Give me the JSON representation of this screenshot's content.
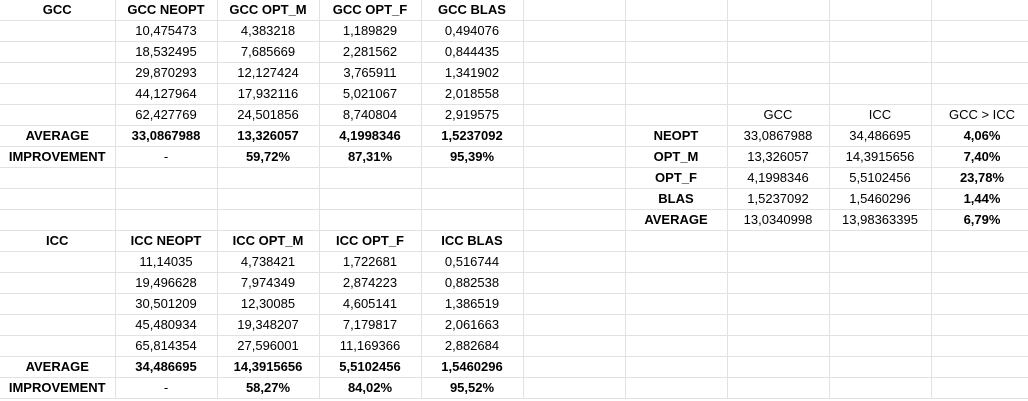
{
  "gcc": {
    "title": "GCC",
    "headers": [
      "GCC NEOPT",
      "GCC OPT_M",
      "GCC OPT_F",
      "GCC BLAS"
    ],
    "rows": [
      [
        "10,475473",
        "4,383218",
        "1,189829",
        "0,494076"
      ],
      [
        "18,532495",
        "7,685669",
        "2,281562",
        "0,844435"
      ],
      [
        "29,870293",
        "12,127424",
        "3,765911",
        "1,341902"
      ],
      [
        "44,127964",
        "17,932116",
        "5,021067",
        "2,018558"
      ],
      [
        "62,427769",
        "24,501856",
        "8,740804",
        "2,919575"
      ]
    ],
    "average_label": "AVERAGE",
    "average": [
      "33,0867988",
      "13,326057",
      "4,1998346",
      "1,5237092"
    ],
    "improvement_label": "IMPROVEMENT",
    "improvement": [
      "-",
      "59,72%",
      "87,31%",
      "95,39%"
    ]
  },
  "icc": {
    "title": "ICC",
    "headers": [
      "ICC NEOPT",
      "ICC OPT_M",
      "ICC OPT_F",
      "ICC BLAS"
    ],
    "rows": [
      [
        "11,14035",
        "4,738421",
        "1,722681",
        "0,516744"
      ],
      [
        "19,496628",
        "7,974349",
        "2,874223",
        "0,882538"
      ],
      [
        "30,501209",
        "12,30085",
        "4,605141",
        "1,386519"
      ],
      [
        "45,480934",
        "19,348207",
        "7,179817",
        "2,061663"
      ],
      [
        "65,814354",
        "27,596001",
        "11,169366",
        "2,882684"
      ]
    ],
    "average_label": "AVERAGE",
    "average": [
      "34,486695",
      "14,3915656",
      "5,5102456",
      "1,5460296"
    ],
    "improvement_label": "IMPROVEMENT",
    "improvement": [
      "-",
      "58,27%",
      "84,02%",
      "95,52%"
    ]
  },
  "compare": {
    "headers": [
      "GCC",
      "ICC",
      "GCC > ICC"
    ],
    "rows": [
      {
        "label": "NEOPT",
        "gcc": "33,0867988",
        "icc": "34,486695",
        "diff": "4,06%"
      },
      {
        "label": "OPT_M",
        "gcc": "13,326057",
        "icc": "14,3915656",
        "diff": "7,40%"
      },
      {
        "label": "OPT_F",
        "gcc": "4,1998346",
        "icc": "5,5102456",
        "diff": "23,78%"
      },
      {
        "label": "BLAS",
        "gcc": "1,5237092",
        "icc": "1,5460296",
        "diff": "1,44%"
      },
      {
        "label": "AVERAGE",
        "gcc": "13,0340998",
        "icc": "13,98363395",
        "diff": "6,79%"
      }
    ]
  }
}
